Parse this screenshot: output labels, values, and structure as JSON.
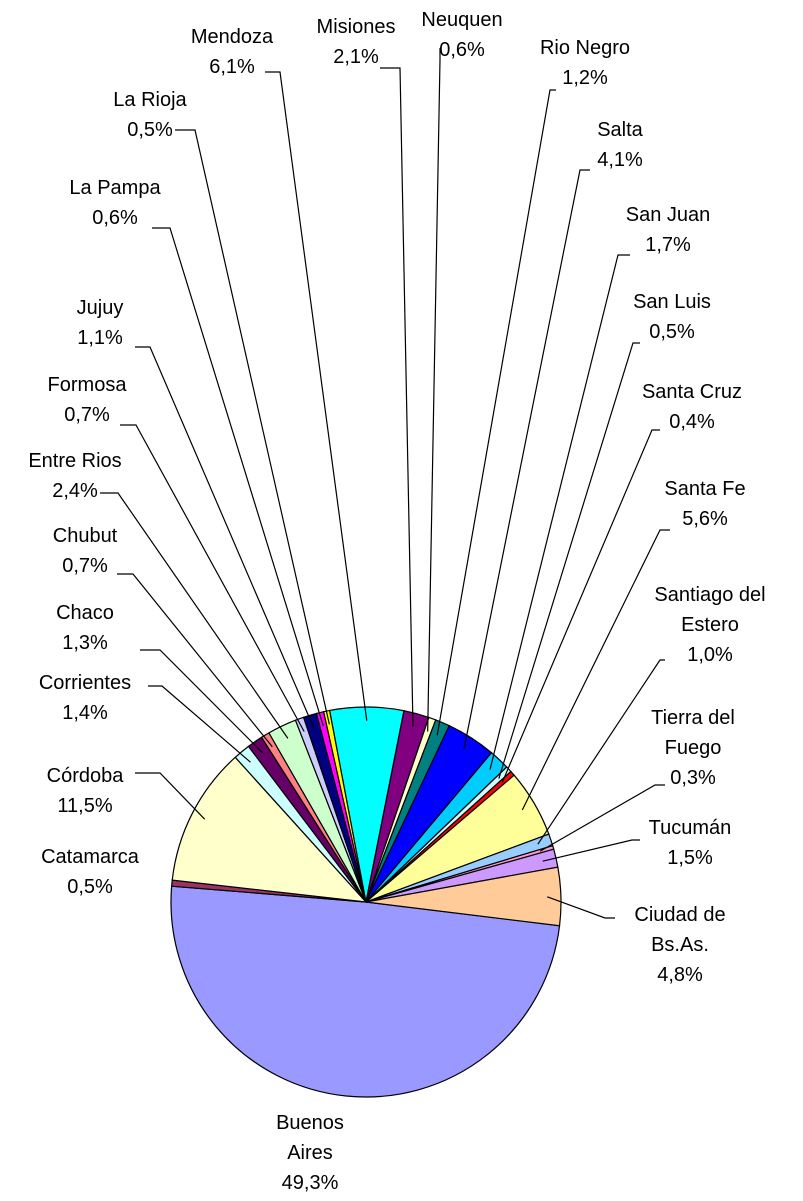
{
  "chart_data": {
    "type": "pie",
    "categories": [
      "Buenos Aires",
      "Catamarca",
      "Córdoba",
      "Corrientes",
      "Chaco",
      "Chubut",
      "Entre Rios",
      "Formosa",
      "Jujuy",
      "La Pampa",
      "La Rioja",
      "Mendoza",
      "Misiones",
      "Neuquen",
      "Rio Negro",
      "Salta",
      "San Juan",
      "San Luis",
      "Santa Cruz",
      "Santa Fe",
      "Santiago del Estero",
      "Tierra del Fuego",
      "Tucumán",
      "Ciudad de Bs.As."
    ],
    "values": [
      49.3,
      0.5,
      11.5,
      1.4,
      1.3,
      0.7,
      2.4,
      0.7,
      1.1,
      0.6,
      0.5,
      6.1,
      2.1,
      0.6,
      1.2,
      4.1,
      1.7,
      0.5,
      0.4,
      5.6,
      1.0,
      0.3,
      1.5,
      4.8
    ],
    "value_labels": [
      "49,3%",
      "0,5%",
      "11,5%",
      "1,4%",
      "1,3%",
      "0,7%",
      "2,4%",
      "0,7%",
      "1,1%",
      "0,6%",
      "0,5%",
      "6,1%",
      "2,1%",
      "0,6%",
      "1,2%",
      "4,1%",
      "1,7%",
      "0,5%",
      "0,4%",
      "5,6%",
      "1,0%",
      "0,3%",
      "1,5%",
      "4,8%"
    ],
    "colors": [
      "#9999ff",
      "#993366",
      "#ffffcc",
      "#ccffff",
      "#660066",
      "#ff8080",
      "#ccffcc",
      "#ccccff",
      "#000080",
      "#ff00ff",
      "#ffff00",
      "#00ffff",
      "#800080",
      "#ffffcc",
      "#008080",
      "#0000ff",
      "#00ccff",
      "#ccffff",
      "#ff0000",
      "#ffff99",
      "#99ccff",
      "#ff99cc",
      "#cc99ff",
      "#ffcc99"
    ]
  }
}
